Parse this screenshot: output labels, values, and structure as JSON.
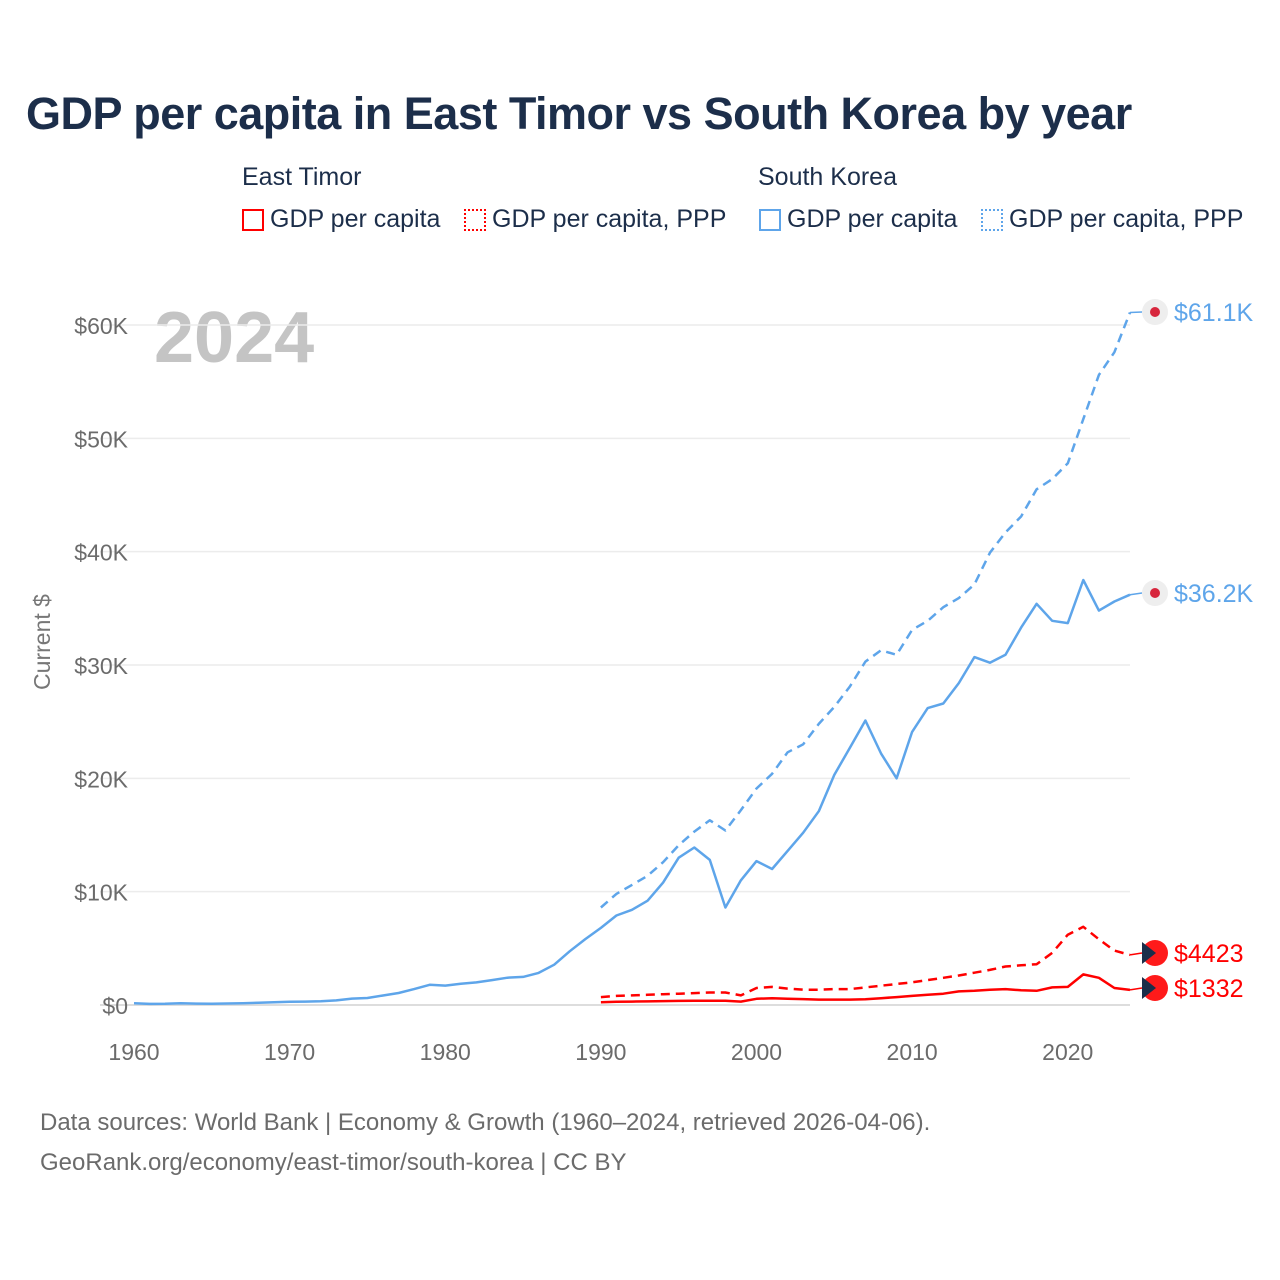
{
  "title": "GDP per capita in East Timor vs South Korea by year",
  "legend": {
    "east_timor": "East Timor",
    "south_korea": "South Korea",
    "gdp": "GDP per capita",
    "ppp": "GDP per capita, PPP"
  },
  "year_label": "2024",
  "source_line1": "Data sources: World Bank | Economy & Growth (1960–2024, retrieved 2026-04-06).",
  "source_line2": "GeoRank.org/economy/east-timor/south-korea | CC BY",
  "colors": {
    "east_timor": "#ff0000",
    "south_korea": "#5ea5ea"
  },
  "chart_data": {
    "type": "line",
    "title": "GDP per capita in East Timor vs South Korea by year",
    "xlabel": "",
    "ylabel": "Current $",
    "xlim": [
      1960,
      2024
    ],
    "ylim": [
      0,
      60000
    ],
    "xticks": [
      1960,
      1970,
      1980,
      1990,
      2000,
      2010,
      2020
    ],
    "yticks": [
      0,
      10000,
      20000,
      30000,
      40000,
      50000,
      60000
    ],
    "ytick_labels": [
      "$0",
      "$10K",
      "$20K",
      "$30K",
      "$40K",
      "$50K",
      "$60K"
    ],
    "grid": true,
    "end_labels": [
      "$61.1K",
      "$36.2K",
      "$4423",
      "$1332"
    ],
    "series": [
      {
        "name": "South Korea GDP per capita",
        "country": "south_korea",
        "style": "solid",
        "start": 1960,
        "values": [
          158,
          94,
          106,
          146,
          124,
          108,
          133,
          161,
          198,
          243,
          279,
          301,
          324,
          406,
          563,
          617,
          834,
          1055,
          1405,
          1783,
          1715,
          1883,
          1993,
          2199,
          2413,
          2482,
          2835,
          3555,
          4749,
          5817,
          6800,
          7900,
          8400,
          9200,
          10800,
          13000,
          13900,
          12800,
          8600,
          11000,
          12700,
          12000,
          13600,
          15200,
          17100,
          20300,
          22700,
          25100,
          22200,
          20000,
          24100,
          26200,
          26600,
          28400,
          30700,
          30200,
          30900,
          33300,
          35400,
          33900,
          33700,
          37500,
          34800,
          35600,
          36200
        ]
      },
      {
        "name": "South Korea GDP per capita, PPP",
        "country": "south_korea",
        "style": "dashed",
        "start": 1990,
        "values": [
          8600,
          9800,
          10600,
          11400,
          12600,
          14100,
          15300,
          16300,
          15400,
          17200,
          19100,
          20400,
          22300,
          23000,
          24800,
          26300,
          28100,
          30300,
          31300,
          30900,
          33100,
          33900,
          35100,
          35900,
          37100,
          39900,
          41700,
          43100,
          45500,
          46400,
          47800,
          51700,
          55600,
          57600,
          61100
        ]
      },
      {
        "name": "East Timor GDP per capita",
        "country": "east_timor",
        "style": "solid",
        "start": 1990,
        "values": [
          250,
          280,
          300,
          320,
          340,
          360,
          380,
          380,
          380,
          300,
          550,
          600,
          550,
          520,
          480,
          480,
          480,
          500,
          600,
          700,
          800,
          900,
          1000,
          1200,
          1250,
          1350,
          1400,
          1300,
          1250,
          1550,
          1600,
          2700,
          2400,
          1500,
          1332
        ]
      },
      {
        "name": "East Timor GDP per capita, PPP",
        "country": "east_timor",
        "style": "dashed",
        "start": 1990,
        "values": [
          700,
          800,
          850,
          900,
          950,
          1000,
          1050,
          1100,
          1100,
          850,
          1500,
          1600,
          1450,
          1350,
          1350,
          1400,
          1400,
          1550,
          1700,
          1850,
          2000,
          2200,
          2400,
          2600,
          2850,
          3100,
          3400,
          3500,
          3600,
          4600,
          6200,
          6900,
          5800,
          4800,
          4423
        ]
      }
    ]
  }
}
